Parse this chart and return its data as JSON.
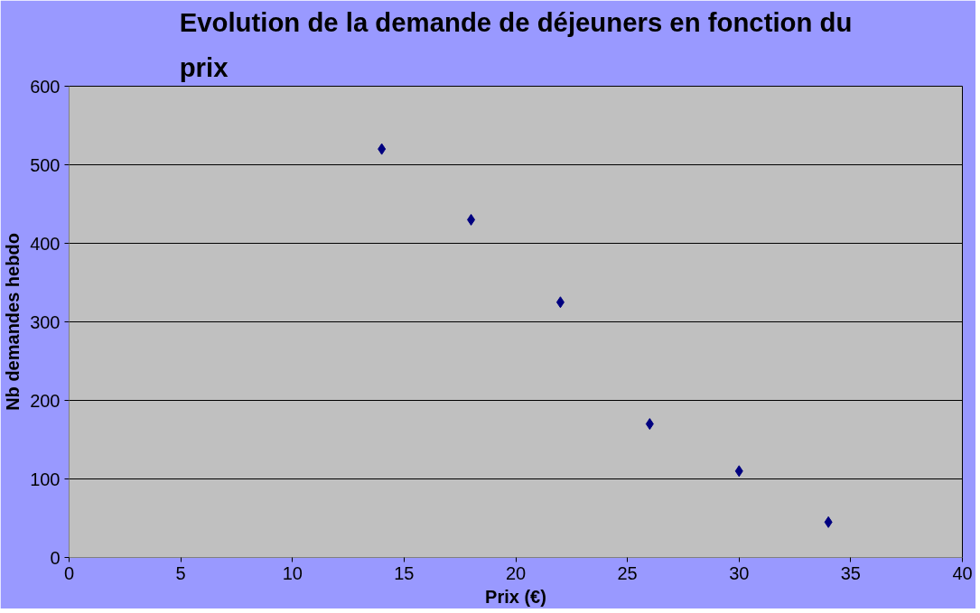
{
  "chart_data": {
    "type": "scatter",
    "title": "Evolution de la demande de déjeuners en fonction du prix",
    "xlabel": "Prix (€)",
    "ylabel": "Nb demandes hebdo",
    "x": [
      14,
      18,
      22,
      26,
      30,
      34
    ],
    "series": [
      {
        "color": "#000080",
        "values": [
          520,
          430,
          325,
          170,
          110,
          45
        ]
      }
    ],
    "xlim": [
      0,
      40
    ],
    "xticks": [
      0,
      5,
      10,
      15,
      20,
      25,
      30,
      35,
      40
    ],
    "ylim": [
      0,
      600
    ],
    "yticks": [
      0,
      100,
      200,
      300,
      400,
      500,
      600
    ],
    "grid": "y",
    "marker": "diamond"
  }
}
